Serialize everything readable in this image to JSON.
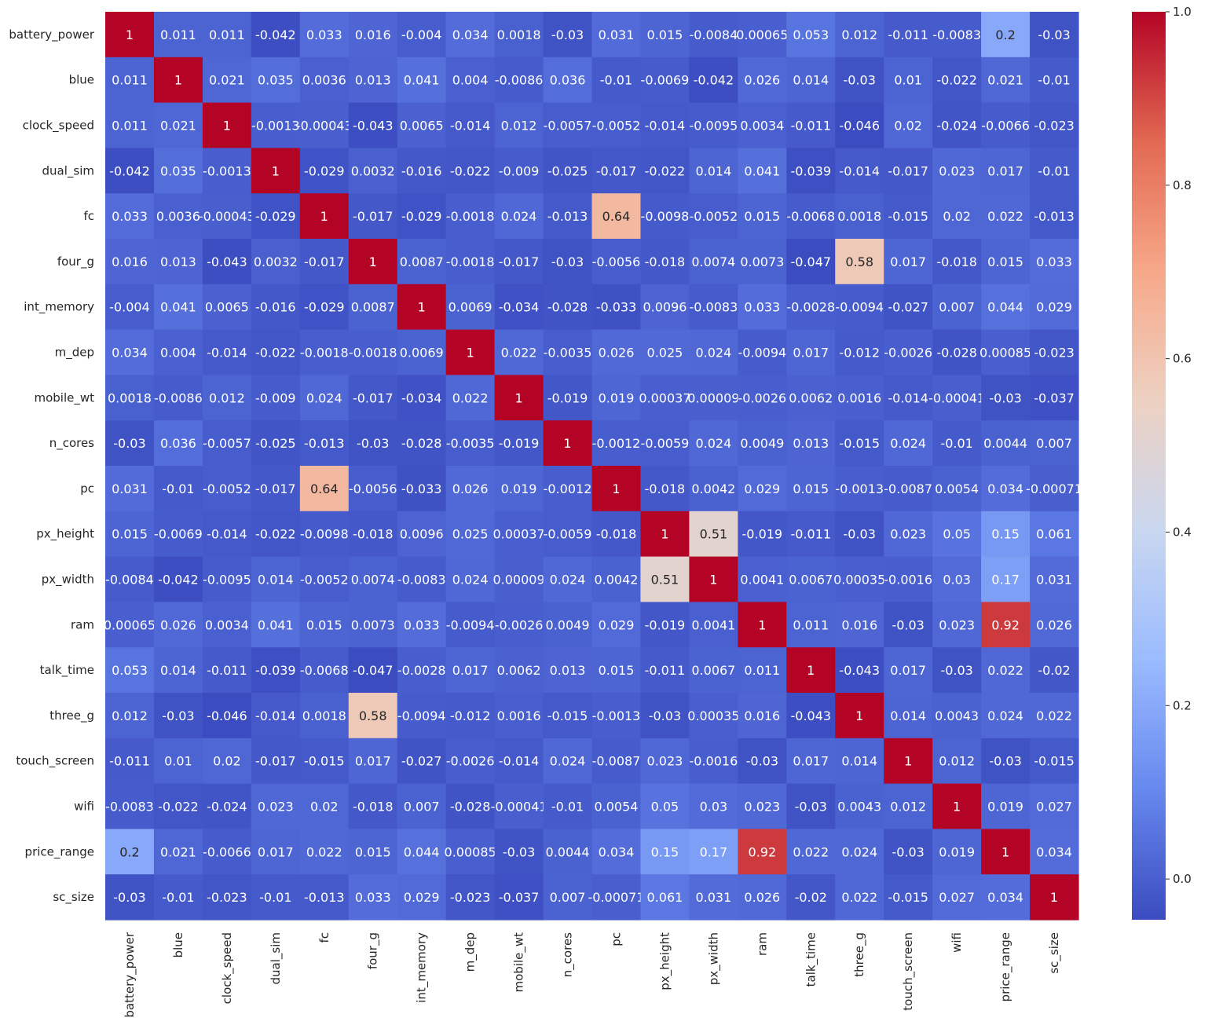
{
  "chart_data": {
    "type": "heatmap",
    "title": "",
    "colormap": "coolwarm",
    "colormap_stops": [
      "#3b4cc0",
      "#6788ee",
      "#9abbff",
      "#c9d7f0",
      "#edd1c2",
      "#f7a889",
      "#e26952",
      "#b40426"
    ],
    "vmin": -0.047,
    "vmax": 1.0,
    "labels": [
      "battery_power",
      "blue",
      "clock_speed",
      "dual_sim",
      "fc",
      "four_g",
      "int_memory",
      "m_dep",
      "mobile_wt",
      "n_cores",
      "pc",
      "px_height",
      "px_width",
      "ram",
      "talk_time",
      "three_g",
      "touch_screen",
      "wifi",
      "price_range",
      "sc_size"
    ],
    "values": [
      [
        1,
        0.011,
        0.011,
        -0.042,
        0.033,
        0.016,
        -0.004,
        0.034,
        0.0018,
        -0.03,
        0.031,
        0.015,
        -0.0084,
        0.00065,
        0.053,
        0.012,
        -0.011,
        -0.0083,
        0.2,
        -0.03
      ],
      [
        0.011,
        1,
        0.021,
        0.035,
        0.0036,
        0.013,
        0.041,
        0.004,
        -0.0086,
        0.036,
        -0.01,
        -0.0069,
        -0.042,
        0.026,
        0.014,
        -0.03,
        0.01,
        -0.022,
        0.021,
        -0.01
      ],
      [
        0.011,
        0.021,
        1,
        -0.0013,
        -0.00043,
        -0.043,
        0.0065,
        -0.014,
        0.012,
        -0.0057,
        -0.0052,
        -0.014,
        -0.0095,
        0.0034,
        -0.011,
        -0.046,
        0.02,
        -0.024,
        -0.0066,
        -0.023
      ],
      [
        -0.042,
        0.035,
        -0.0013,
        1,
        -0.029,
        0.0032,
        -0.016,
        -0.022,
        -0.009,
        -0.025,
        -0.017,
        -0.022,
        0.014,
        0.041,
        -0.039,
        -0.014,
        -0.017,
        0.023,
        0.017,
        -0.01
      ],
      [
        0.033,
        0.0036,
        -0.00043,
        -0.029,
        1,
        -0.017,
        -0.029,
        -0.0018,
        0.024,
        -0.013,
        0.64,
        -0.0098,
        -0.0052,
        0.015,
        -0.0068,
        0.0018,
        -0.015,
        0.02,
        0.022,
        -0.013
      ],
      [
        0.016,
        0.013,
        -0.043,
        0.0032,
        -0.017,
        1,
        0.0087,
        -0.0018,
        -0.017,
        -0.03,
        -0.0056,
        -0.018,
        0.0074,
        0.0073,
        -0.047,
        0.58,
        0.017,
        -0.018,
        0.015,
        0.033
      ],
      [
        -0.004,
        0.041,
        0.0065,
        -0.016,
        -0.029,
        0.0087,
        1,
        0.0069,
        -0.034,
        -0.028,
        -0.033,
        0.0096,
        -0.0083,
        0.033,
        -0.0028,
        -0.0094,
        -0.027,
        0.007,
        0.044,
        0.029
      ],
      [
        0.034,
        0.004,
        -0.014,
        -0.022,
        -0.0018,
        -0.0018,
        0.0069,
        1,
        0.022,
        -0.0035,
        0.026,
        0.025,
        0.024,
        -0.0094,
        0.017,
        -0.012,
        -0.0026,
        -0.028,
        0.00085,
        -0.023
      ],
      [
        0.0018,
        -0.0086,
        0.012,
        -0.009,
        0.024,
        -0.017,
        -0.034,
        0.022,
        1,
        -0.019,
        0.019,
        0.00037,
        9e-05,
        -0.0026,
        0.0062,
        0.0016,
        -0.014,
        -0.00041,
        -0.03,
        -0.037
      ],
      [
        -0.03,
        0.036,
        -0.0057,
        -0.025,
        -0.013,
        -0.03,
        -0.028,
        -0.0035,
        -0.019,
        1,
        -0.0012,
        -0.0059,
        0.024,
        0.0049,
        0.013,
        -0.015,
        0.024,
        -0.01,
        0.0044,
        0.007
      ],
      [
        0.031,
        -0.01,
        -0.0052,
        -0.017,
        0.64,
        -0.0056,
        -0.033,
        0.026,
        0.019,
        -0.0012,
        1,
        -0.018,
        0.0042,
        0.029,
        0.015,
        -0.0013,
        -0.0087,
        0.0054,
        0.034,
        -0.00071
      ],
      [
        0.015,
        -0.0069,
        -0.014,
        -0.022,
        -0.0098,
        -0.018,
        0.0096,
        0.025,
        0.00037,
        -0.0059,
        -0.018,
        1,
        0.51,
        -0.019,
        -0.011,
        -0.03,
        0.023,
        0.05,
        0.15,
        0.061
      ],
      [
        -0.0084,
        -0.042,
        -0.0095,
        0.014,
        -0.0052,
        0.0074,
        -0.0083,
        0.024,
        9e-05,
        0.024,
        0.0042,
        0.51,
        1,
        0.0041,
        0.0067,
        0.00035,
        -0.0016,
        0.03,
        0.17,
        0.031
      ],
      [
        0.00065,
        0.026,
        0.0034,
        0.041,
        0.015,
        0.0073,
        0.033,
        -0.0094,
        -0.0026,
        0.0049,
        0.029,
        -0.019,
        0.0041,
        1,
        0.011,
        0.016,
        -0.03,
        0.023,
        0.92,
        0.026
      ],
      [
        0.053,
        0.014,
        -0.011,
        -0.039,
        -0.0068,
        -0.047,
        -0.0028,
        0.017,
        0.0062,
        0.013,
        0.015,
        -0.011,
        0.0067,
        0.011,
        1,
        -0.043,
        0.017,
        -0.03,
        0.022,
        -0.02
      ],
      [
        0.012,
        -0.03,
        -0.046,
        -0.014,
        0.0018,
        0.58,
        -0.0094,
        -0.012,
        0.0016,
        -0.015,
        -0.0013,
        -0.03,
        0.00035,
        0.016,
        -0.043,
        1,
        0.014,
        0.0043,
        0.024,
        0.022
      ],
      [
        -0.011,
        0.01,
        0.02,
        -0.017,
        -0.015,
        0.017,
        -0.027,
        -0.0026,
        -0.014,
        0.024,
        -0.0087,
        0.023,
        -0.0016,
        -0.03,
        0.017,
        0.014,
        1,
        0.012,
        -0.03,
        -0.015
      ],
      [
        -0.0083,
        -0.022,
        -0.024,
        0.023,
        0.02,
        -0.018,
        0.007,
        -0.028,
        -0.00041,
        -0.01,
        0.0054,
        0.05,
        0.03,
        0.023,
        -0.03,
        0.0043,
        0.012,
        1,
        0.019,
        0.027
      ],
      [
        0.2,
        0.021,
        -0.0066,
        0.017,
        0.022,
        0.015,
        0.044,
        0.00085,
        -0.03,
        0.0044,
        0.034,
        0.15,
        0.17,
        0.92,
        0.022,
        0.024,
        -0.03,
        0.019,
        1,
        0.034
      ],
      [
        -0.03,
        -0.01,
        -0.023,
        -0.01,
        -0.013,
        0.033,
        0.029,
        -0.023,
        -0.037,
        0.007,
        -0.00071,
        0.061,
        0.031,
        0.026,
        -0.02,
        0.022,
        -0.015,
        0.027,
        0.034,
        1
      ]
    ],
    "colorbar_ticks": [
      "0.0",
      "0.2",
      "0.4",
      "0.6",
      "0.8",
      "1.0"
    ]
  }
}
